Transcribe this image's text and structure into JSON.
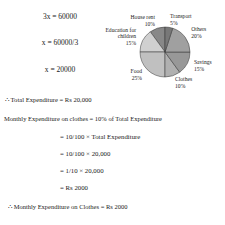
{
  "chart_data": {
    "type": "pie",
    "categories": [
      "House rent",
      "Education for\nchildren",
      "Food",
      "Clothes",
      "Savings",
      "Others",
      "Transport"
    ],
    "values": [
      10,
      15,
      25,
      10,
      15,
      20,
      5
    ],
    "value_labels": [
      "10%",
      "15%",
      "25%",
      "10%",
      "15%",
      "20%",
      "5%"
    ],
    "colors": [
      "#888888",
      "#d0d0d0",
      "#c0c0c0",
      "#b0b0b0",
      "#989898",
      "#a0a0a0",
      "#787878"
    ],
    "annotations": [
      "3x = 60000",
      "x = 60000/3",
      "x = 20000",
      "∴ Total Expenditure = Rs 20,000",
      "Monthly Expenditure on clothes = 10% of Total Expenditure",
      "= 10/100 × Total Expenditure",
      "= 10/100 × 20,000",
      "= 1/10 × 20,000",
      "= Rs 2000",
      "∴ Monthly Expenditure on Clothes = Rs 2000"
    ]
  }
}
